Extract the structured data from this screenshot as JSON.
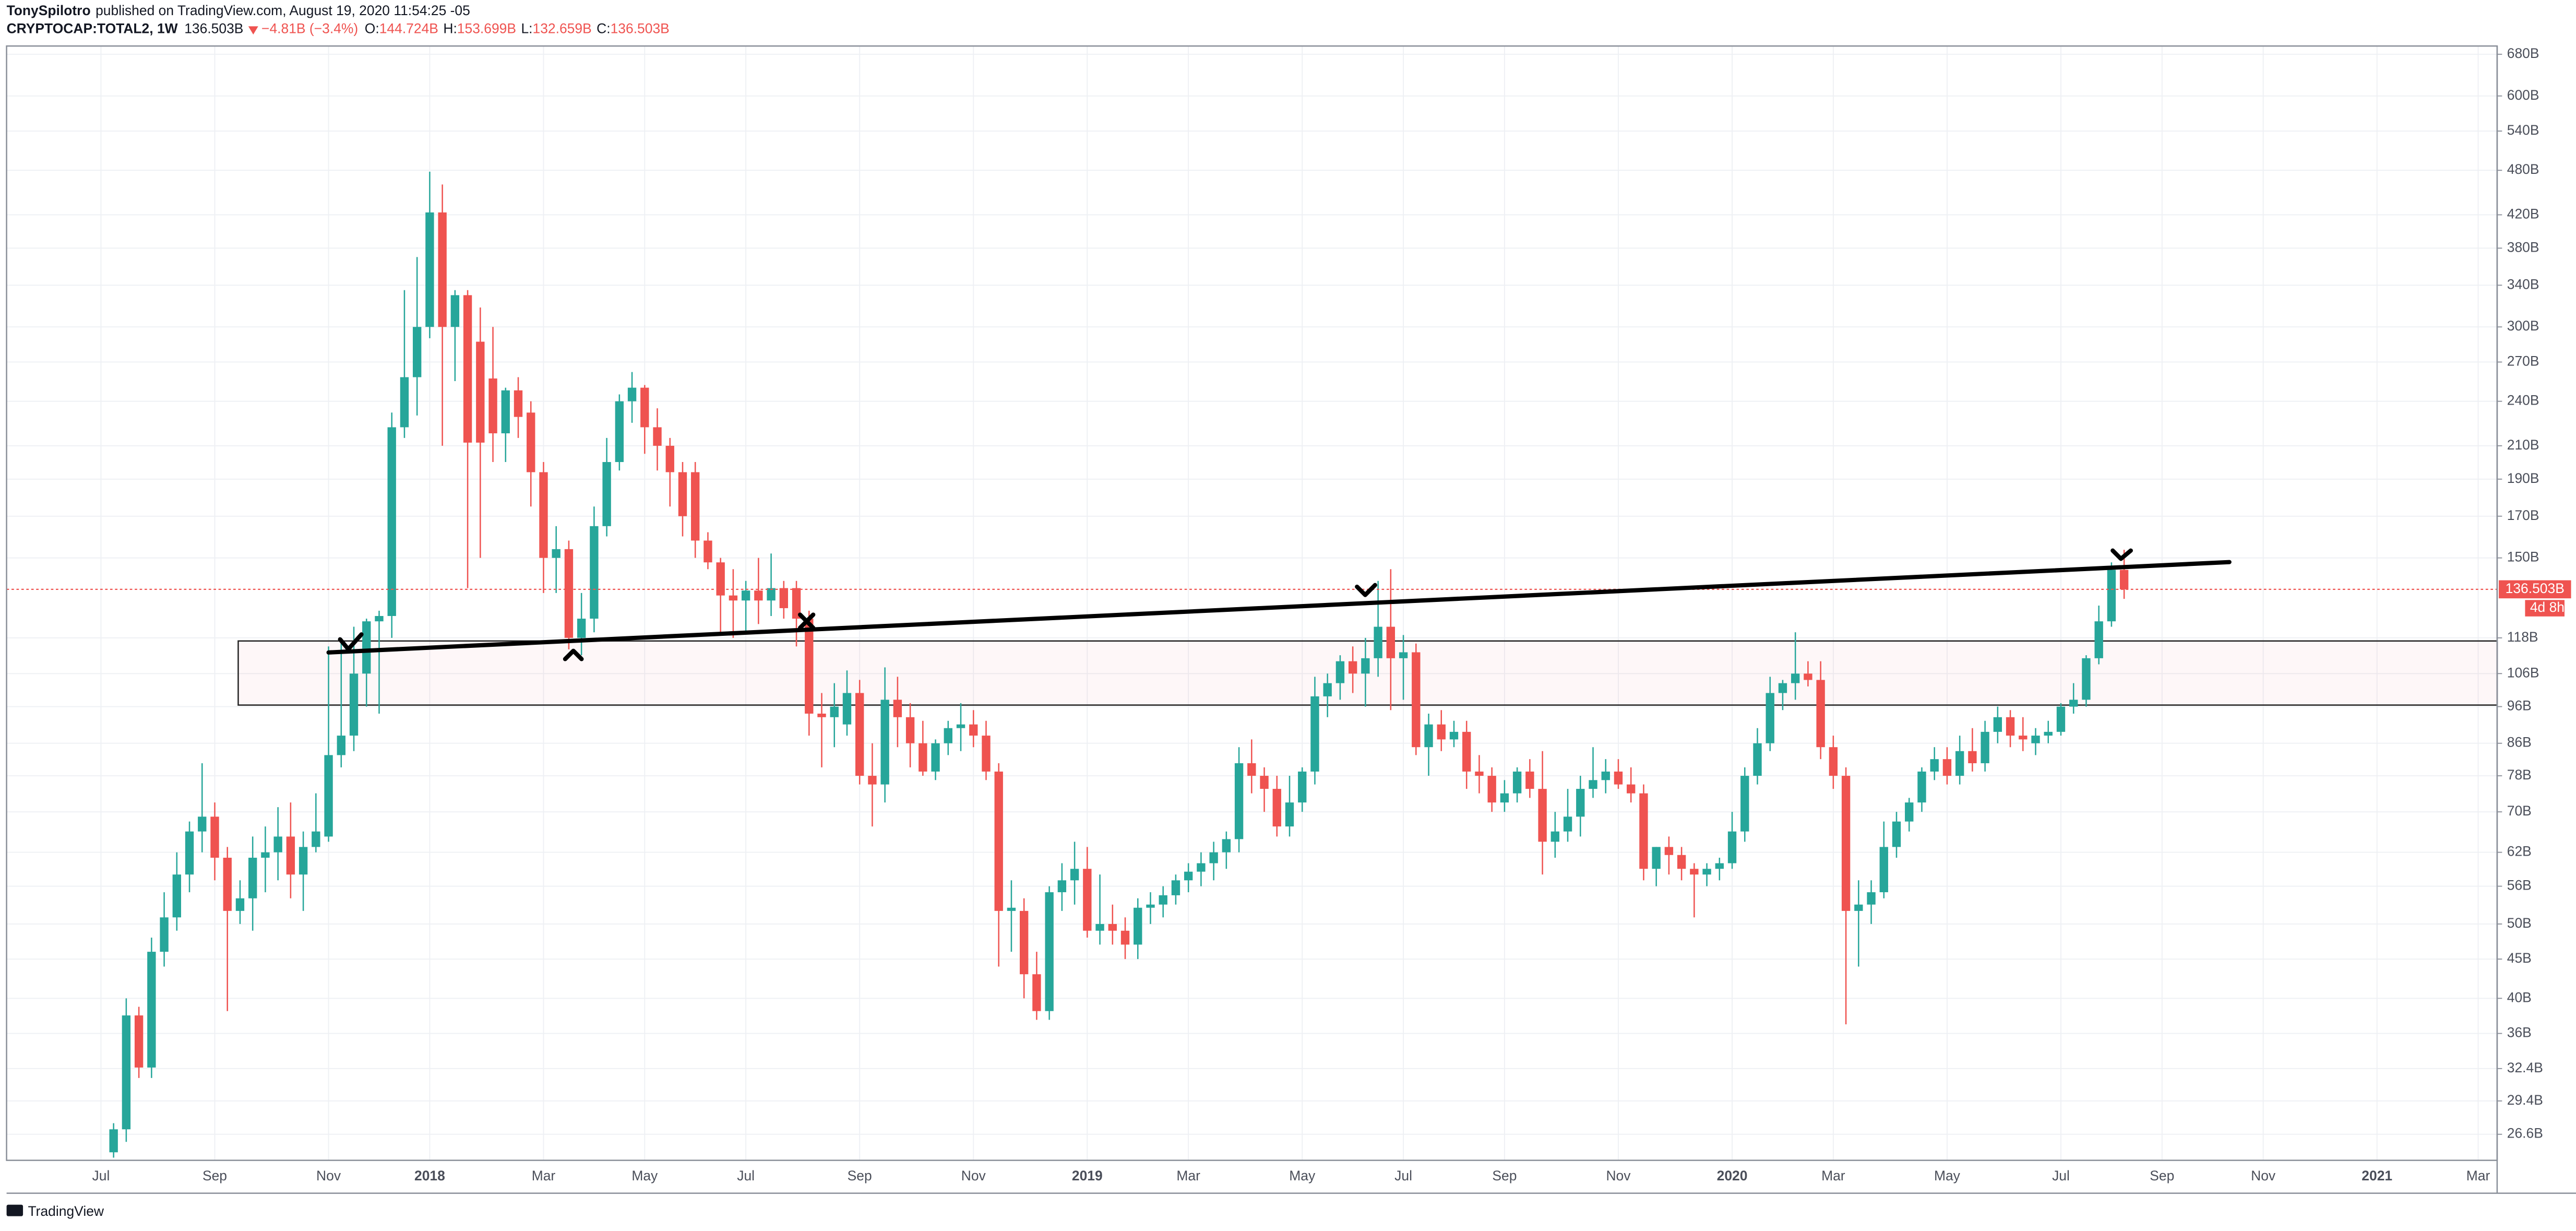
{
  "header": {
    "author": "TonySpilotro",
    "published": "published on TradingView.com, August 19, 2020 11:54:25 -05",
    "symbol": "CRYPTOCAP:TOTAL2, 1W",
    "last": "136.503B",
    "change": "−4.81B (−3.4%)",
    "ohlc": [
      {
        "label": "O:",
        "value": "144.724B"
      },
      {
        "label": "H:",
        "value": "153.699B"
      },
      {
        "label": "L:",
        "value": "132.659B"
      },
      {
        "label": "C:",
        "value": "136.503B"
      }
    ]
  },
  "footer": "TradingView",
  "chart_data": {
    "type": "candlestick",
    "log": true,
    "grid": true,
    "up_color": "#26a69a",
    "down_color": "#ef5350",
    "ylim": [
      24.6,
      697
    ],
    "yticks": [
      {
        "value": 680,
        "label": "680B"
      },
      {
        "value": 600,
        "label": "600B"
      },
      {
        "value": 540,
        "label": "540B"
      },
      {
        "value": 480,
        "label": "480B"
      },
      {
        "value": 420,
        "label": "420B"
      },
      {
        "value": 380,
        "label": "380B"
      },
      {
        "value": 340,
        "label": "340B"
      },
      {
        "value": 300,
        "label": "300B"
      },
      {
        "value": 270,
        "label": "270B"
      },
      {
        "value": 240,
        "label": "240B"
      },
      {
        "value": 210,
        "label": "210B"
      },
      {
        "value": 190,
        "label": "190B"
      },
      {
        "value": 170,
        "label": "170B"
      },
      {
        "value": 150,
        "label": "150B"
      },
      {
        "value": 118,
        "label": "118B"
      },
      {
        "value": 106,
        "label": "106B"
      },
      {
        "value": 96,
        "label": "96B"
      },
      {
        "value": 86,
        "label": "86B"
      },
      {
        "value": 78,
        "label": "78B"
      },
      {
        "value": 70,
        "label": "70B"
      },
      {
        "value": 62,
        "label": "62B"
      },
      {
        "value": 56,
        "label": "56B"
      },
      {
        "value": 50,
        "label": "50B"
      },
      {
        "value": 45,
        "label": "45B"
      },
      {
        "value": 40,
        "label": "40B"
      },
      {
        "value": 36,
        "label": "36B"
      },
      {
        "value": 32.4,
        "label": "32.4B"
      },
      {
        "value": 29.4,
        "label": "29.4B"
      },
      {
        "value": 26.6,
        "label": "26.6B"
      }
    ],
    "last_price": {
      "value": 136.503,
      "label": "136.503B"
    },
    "countdown": "4d 8h",
    "categories": [
      "Jul",
      null,
      null,
      null,
      null,
      null,
      null,
      null,
      null,
      "Sep",
      null,
      null,
      null,
      null,
      null,
      null,
      null,
      null,
      "Nov",
      null,
      null,
      null,
      null,
      null,
      null,
      null,
      "2018",
      null,
      null,
      null,
      null,
      null,
      null,
      null,
      null,
      "Mar",
      null,
      null,
      null,
      null,
      null,
      null,
      null,
      "May",
      null,
      null,
      null,
      null,
      null,
      null,
      null,
      "Jul",
      null,
      null,
      null,
      null,
      null,
      null,
      null,
      null,
      "Sep",
      null,
      null,
      null,
      null,
      null,
      null,
      null,
      null,
      "Nov",
      null,
      null,
      null,
      null,
      null,
      null,
      null,
      null,
      "2019",
      null,
      null,
      null,
      null,
      null,
      null,
      null,
      "Mar",
      null,
      null,
      null,
      null,
      null,
      null,
      null,
      null,
      "May",
      null,
      null,
      null,
      null,
      null,
      null,
      null,
      "Jul",
      null,
      null,
      null,
      null,
      null,
      null,
      null,
      "Sep",
      null,
      null,
      null,
      null,
      null,
      null,
      null,
      null,
      "Nov",
      null,
      null,
      null,
      null,
      null,
      null,
      null,
      null,
      "2020",
      null,
      null,
      null,
      null,
      null,
      null,
      null,
      "Mar",
      null,
      null,
      null,
      null,
      null,
      null,
      null,
      null,
      "May",
      null,
      null,
      null,
      null,
      null,
      null,
      null,
      null,
      "Jul",
      null,
      null,
      null,
      null,
      null,
      null,
      null,
      "Sep",
      null,
      null,
      null,
      null,
      null,
      null,
      null,
      "Nov",
      null,
      null,
      null,
      null,
      null,
      null,
      null,
      null,
      "2021",
      null,
      null,
      null,
      null,
      null,
      null,
      null,
      "Mar",
      null
    ],
    "open": [
      null,
      25.2,
      27,
      38,
      32.5,
      46,
      51,
      58,
      66,
      69,
      61,
      52,
      54,
      61,
      62,
      65,
      58,
      63,
      65,
      83,
      88,
      106,
      124,
      126,
      222,
      258,
      300,
      423,
      300,
      330,
      287,
      257,
      218,
      248,
      232,
      194,
      150,
      154,
      118,
      125,
      165,
      200,
      240,
      250,
      222,
      210,
      194,
      194,
      158,
      148,
      134,
      132,
      136,
      132,
      137,
      137,
      125,
      94,
      93,
      91,
      100,
      78,
      76,
      98,
      93,
      86,
      79,
      86,
      90,
      91,
      88,
      79,
      52,
      52,
      43,
      38.5,
      55,
      57,
      59,
      49,
      50,
      49,
      47,
      52.5,
      53,
      54.5,
      57,
      58.5,
      60,
      62,
      64.5,
      81,
      78,
      75,
      67,
      72,
      79,
      99,
      103,
      110,
      106,
      111,
      122,
      111,
      113,
      85,
      91,
      87,
      89,
      79,
      78,
      72,
      74,
      79,
      75,
      64,
      66,
      69,
      75,
      77,
      79,
      76,
      74,
      59,
      63,
      61.5,
      59,
      58,
      59,
      60,
      66,
      78,
      86,
      100,
      103,
      106,
      104,
      85,
      78,
      52,
      53,
      55,
      63,
      68,
      72,
      79,
      82,
      78,
      84,
      81,
      89,
      93,
      88,
      86,
      88,
      89,
      96,
      98,
      111,
      124,
      144.724,
      null,
      null,
      null,
      null,
      null,
      null,
      null,
      null,
      null,
      null,
      null,
      null,
      null,
      null,
      null,
      null,
      null,
      null,
      null,
      null,
      null,
      null,
      null,
      null,
      null,
      null,
      null,
      null,
      null
    ],
    "high": [
      null,
      27.5,
      40,
      39,
      48,
      55,
      62,
      68,
      81,
      72,
      63,
      57,
      65,
      67,
      71,
      72,
      66,
      74,
      115,
      118,
      122,
      125,
      128,
      232,
      335,
      370,
      478,
      460,
      335,
      335,
      318,
      300,
      250,
      258,
      240,
      200,
      165,
      158,
      135,
      175,
      215,
      245,
      262,
      252,
      235,
      215,
      200,
      200,
      162,
      150,
      145,
      140,
      150,
      152,
      140,
      140,
      128,
      100,
      103,
      107,
      104,
      86,
      108,
      105,
      97,
      92,
      87,
      92,
      97,
      95,
      92,
      81,
      57,
      54,
      46,
      56,
      60,
      64,
      63,
      58,
      53,
      51,
      54,
      55,
      56,
      58,
      60,
      62,
      64,
      66,
      85,
      87,
      80,
      78,
      78,
      80,
      105,
      106,
      112,
      115,
      118,
      140,
      145,
      119,
      116,
      94,
      95,
      92,
      92,
      83,
      80,
      77,
      80,
      82,
      84,
      70,
      75,
      78,
      85,
      82,
      82,
      80,
      76,
      63,
      65,
      63,
      60,
      60,
      61,
      70,
      80,
      90,
      105,
      104,
      120,
      110,
      110,
      88,
      80,
      57,
      57,
      68,
      70,
      73,
      80,
      85,
      85,
      88,
      90,
      92,
      96,
      95,
      93,
      90,
      92,
      97,
      103,
      112,
      130,
      148,
      153.699,
      null,
      null,
      null,
      null,
      null,
      null,
      null,
      null,
      null,
      null,
      null,
      null,
      null,
      null,
      null,
      null,
      null,
      null,
      null,
      null,
      null,
      null,
      null,
      null,
      null,
      null,
      null,
      null,
      null
    ],
    "low": [
      null,
      24.8,
      26,
      31.5,
      31.5,
      44,
      49,
      55,
      62,
      57,
      38.5,
      50,
      49,
      55,
      57,
      54,
      52,
      62,
      64,
      80,
      84,
      96,
      94,
      118,
      215,
      230,
      290,
      210,
      255,
      137,
      150,
      200,
      200,
      215,
      175,
      135,
      135,
      114,
      112,
      120,
      160,
      195,
      225,
      205,
      195,
      175,
      160,
      150,
      145,
      120,
      118,
      120,
      123,
      126,
      125,
      115,
      88,
      80,
      85,
      88,
      76,
      67,
      72,
      85,
      80,
      78,
      77,
      83,
      84,
      85,
      77,
      44,
      46,
      40,
      37.5,
      37.5,
      52,
      53,
      48,
      47,
      47,
      45,
      45,
      50,
      51,
      53,
      55,
      56,
      57,
      59,
      62,
      74,
      70,
      65,
      65,
      70,
      76,
      93,
      98,
      100,
      96,
      105,
      95,
      98,
      83,
      78,
      84,
      85,
      75,
      74,
      70,
      70,
      72,
      73,
      58,
      61,
      64,
      65,
      73,
      74,
      75,
      72,
      57,
      56,
      58,
      57,
      51,
      56,
      57,
      59,
      64,
      76,
      84,
      95,
      98,
      102,
      82,
      75,
      37,
      44,
      50,
      54,
      61,
      66,
      70,
      77,
      76,
      76,
      79,
      79,
      86,
      85,
      84,
      83,
      86,
      88,
      94,
      96,
      109,
      122,
      132.659,
      null,
      null,
      null,
      null,
      null,
      null,
      null,
      null,
      null,
      null,
      null,
      null,
      null,
      null,
      null,
      null,
      null,
      null,
      null,
      null,
      null,
      null,
      null,
      null,
      null,
      null,
      null,
      null,
      null
    ],
    "close": [
      null,
      27,
      38,
      32.5,
      46,
      51,
      58,
      66,
      69,
      61,
      52,
      54,
      61,
      62,
      65,
      58,
      63,
      66,
      83,
      88,
      106,
      124,
      126,
      222,
      258,
      300,
      423,
      300,
      330,
      212,
      212,
      218,
      248,
      229,
      194,
      150,
      154,
      118,
      125,
      165,
      200,
      240,
      250,
      222,
      210,
      194,
      170,
      158,
      148,
      134,
      132,
      136,
      132,
      137,
      129,
      125,
      94,
      93,
      96,
      100,
      78,
      76,
      98,
      93,
      86,
      79,
      86,
      90,
      91,
      88,
      79,
      52,
      52.5,
      43,
      38.5,
      55,
      57,
      59,
      49,
      50,
      49,
      47,
      52.5,
      53,
      54.5,
      57,
      58.5,
      60,
      62,
      64.5,
      81,
      78,
      75,
      67,
      72,
      79,
      99,
      103,
      110,
      106,
      111,
      122,
      111,
      113,
      85,
      91,
      87,
      89,
      79,
      78,
      72,
      74,
      79,
      75,
      64,
      66,
      69,
      75,
      77,
      79,
      76,
      74,
      59,
      63,
      61.5,
      59,
      58,
      59,
      60,
      66,
      78,
      86,
      100,
      103,
      106,
      104,
      85,
      78,
      52,
      53,
      55,
      63,
      68,
      72,
      79,
      82,
      78,
      84,
      81,
      89,
      93,
      88,
      87,
      88,
      89,
      96,
      98,
      111,
      124,
      144.724,
      136.503,
      null,
      null,
      null,
      null,
      null,
      null,
      null,
      null,
      null,
      null,
      null,
      null,
      null,
      null,
      null,
      null,
      null,
      null,
      null,
      null,
      null,
      null,
      null,
      null,
      null,
      null,
      null,
      null,
      null
    ]
  }
}
